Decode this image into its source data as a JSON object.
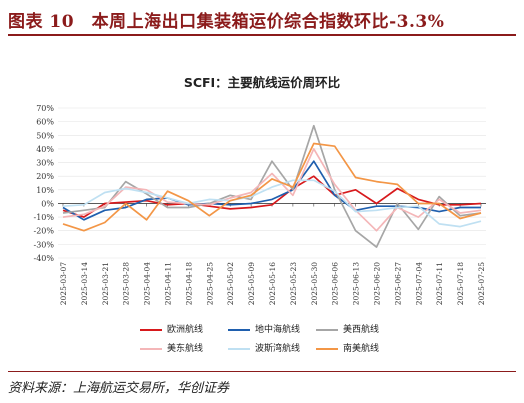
{
  "figure": {
    "title": "图表 10　本周上海出口集装箱运价综合指数环比-3.3%",
    "source": "资料来源：上海航运交易所，华创证券"
  },
  "chart_data": {
    "type": "line",
    "title": "SCFI：主要航线运价周环比",
    "x": [
      "2025-03-07",
      "2025-03-14",
      "2025-03-21",
      "2025-03-28",
      "2025-04-04",
      "2025-04-11",
      "2025-04-18",
      "2025-04-25",
      "2025-05-02",
      "2025-05-09",
      "2025-05-16",
      "2025-05-23",
      "2025-05-30",
      "2025-06-06",
      "2025-06-13",
      "2025-06-20",
      "2025-06-27",
      "2025-07-04",
      "2025-07-11",
      "2025-07-18",
      "2025-07-25"
    ],
    "ylim": [
      -40,
      70
    ],
    "yticks": [
      -40,
      -30,
      -20,
      -10,
      0,
      10,
      20,
      30,
      40,
      50,
      60,
      70
    ],
    "ytick_labels": [
      "-40%",
      "-30%",
      "-20%",
      "-10%",
      "0%",
      "10%",
      "20%",
      "30%",
      "40%",
      "50%",
      "60%",
      "70%"
    ],
    "legend_position": "bottom",
    "series": [
      {
        "name": "欧洲航线",
        "color": "#d7191c",
        "values": [
          -5,
          -10,
          0,
          1,
          2,
          -1,
          0,
          -2,
          -4,
          -3,
          -1,
          11,
          20,
          6,
          10,
          0,
          11,
          3,
          -1,
          -1,
          0
        ]
      },
      {
        "name": "地中海航线",
        "color": "#1f5fae",
        "values": [
          -3,
          -12,
          -5,
          -3,
          3,
          4,
          -1,
          0,
          -1,
          0,
          3,
          10,
          31,
          6,
          -5,
          -2,
          -2,
          -3,
          -6,
          -3,
          -3
        ]
      },
      {
        "name": "美西航线",
        "color": "#a6a6a6",
        "values": [
          -7,
          -5,
          -3,
          16,
          7,
          -3,
          -3,
          0,
          6,
          3,
          31,
          10,
          57,
          10,
          -20,
          -32,
          0,
          -19,
          5,
          -9,
          -7
        ]
      },
      {
        "name": "美东航线",
        "color": "#f4b6b8",
        "values": [
          -10,
          -8,
          -2,
          12,
          10,
          1,
          0,
          -1,
          4,
          8,
          22,
          6,
          40,
          14,
          -5,
          -20,
          -3,
          -10,
          3,
          -7,
          -5
        ]
      },
      {
        "name": "波斯湾航线",
        "color": "#bfe0f2",
        "values": [
          -2,
          -1,
          8,
          11,
          8,
          4,
          0,
          3,
          2,
          5,
          12,
          17,
          17,
          9,
          -6,
          -5,
          -3,
          -2,
          -15,
          -17,
          -13
        ]
      },
      {
        "name": "南美航线",
        "color": "#f39646",
        "values": [
          -15,
          -20,
          -14,
          0,
          -12,
          9,
          2,
          -9,
          2,
          6,
          18,
          12,
          44,
          42,
          19,
          16,
          14,
          0,
          0,
          -11,
          -7
        ]
      }
    ]
  }
}
